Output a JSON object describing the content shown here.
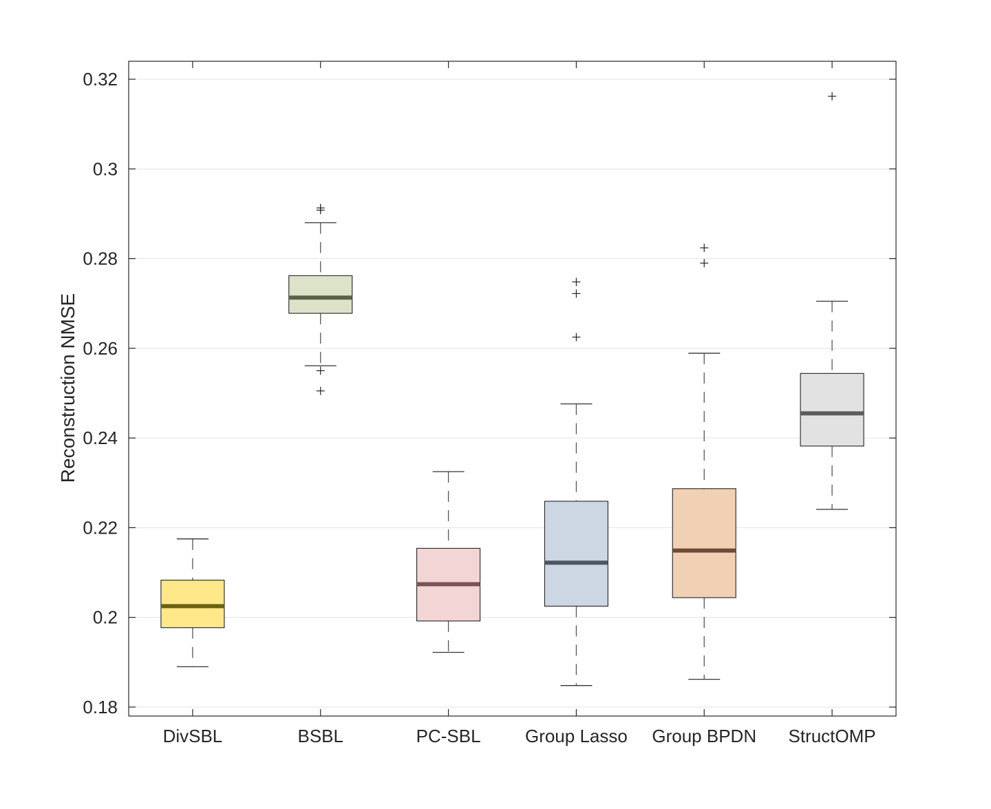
{
  "chart_data": {
    "type": "box",
    "title": "",
    "xlabel": "",
    "ylabel": "Reconstruction NMSE",
    "ylim": [
      0.178,
      0.324
    ],
    "yticks": [
      0.18,
      0.2,
      0.22,
      0.24,
      0.26,
      0.28,
      0.3,
      0.32
    ],
    "ytick_labels": [
      "0.18",
      "0.2",
      "0.22",
      "0.24",
      "0.26",
      "0.28",
      "0.3",
      "0.32"
    ],
    "grid": true,
    "categories": [
      "DivSBL",
      "BSBL",
      "PC-SBL",
      "Group Lasso",
      "Group BPDN",
      "StructOMP"
    ],
    "boxes": [
      {
        "name": "DivSBL",
        "whisker_low": 0.189,
        "q1": 0.1977,
        "median": 0.2025,
        "q3": 0.2083,
        "whisker_high": 0.2175,
        "outliers": [],
        "fill": "#ffe88a",
        "median_color": "#6b6210"
      },
      {
        "name": "BSBL",
        "whisker_low": 0.2561,
        "q1": 0.2678,
        "median": 0.2713,
        "q3": 0.2762,
        "whisker_high": 0.288,
        "outliers": [
          0.2913,
          0.2908,
          0.255,
          0.2505
        ],
        "fill": "#dce3c8",
        "median_color": "#5a6147"
      },
      {
        "name": "PC-SBL",
        "whisker_low": 0.1922,
        "q1": 0.1992,
        "median": 0.2074,
        "q3": 0.2154,
        "whisker_high": 0.2325,
        "outliers": [],
        "fill": "#f3d5d5",
        "median_color": "#7a5452"
      },
      {
        "name": "Group Lasso",
        "whisker_low": 0.1848,
        "q1": 0.2025,
        "median": 0.2122,
        "q3": 0.2259,
        "whisker_high": 0.2476,
        "outliers": [
          0.2748,
          0.2722,
          0.2625
        ],
        "fill": "#cdd7e4",
        "median_color": "#4d5661"
      },
      {
        "name": "Group BPDN",
        "whisker_low": 0.1862,
        "q1": 0.2044,
        "median": 0.2149,
        "q3": 0.2287,
        "whisker_high": 0.2589,
        "outliers": [
          0.2824,
          0.279
        ],
        "fill": "#f2d0b4",
        "median_color": "#6e4b35"
      },
      {
        "name": "StructOMP",
        "whisker_low": 0.2241,
        "q1": 0.2382,
        "median": 0.2455,
        "q3": 0.2544,
        "whisker_high": 0.2705,
        "outliers": [
          0.3162
        ],
        "fill": "#e2e2e2",
        "median_color": "#5c5c5c"
      }
    ]
  }
}
